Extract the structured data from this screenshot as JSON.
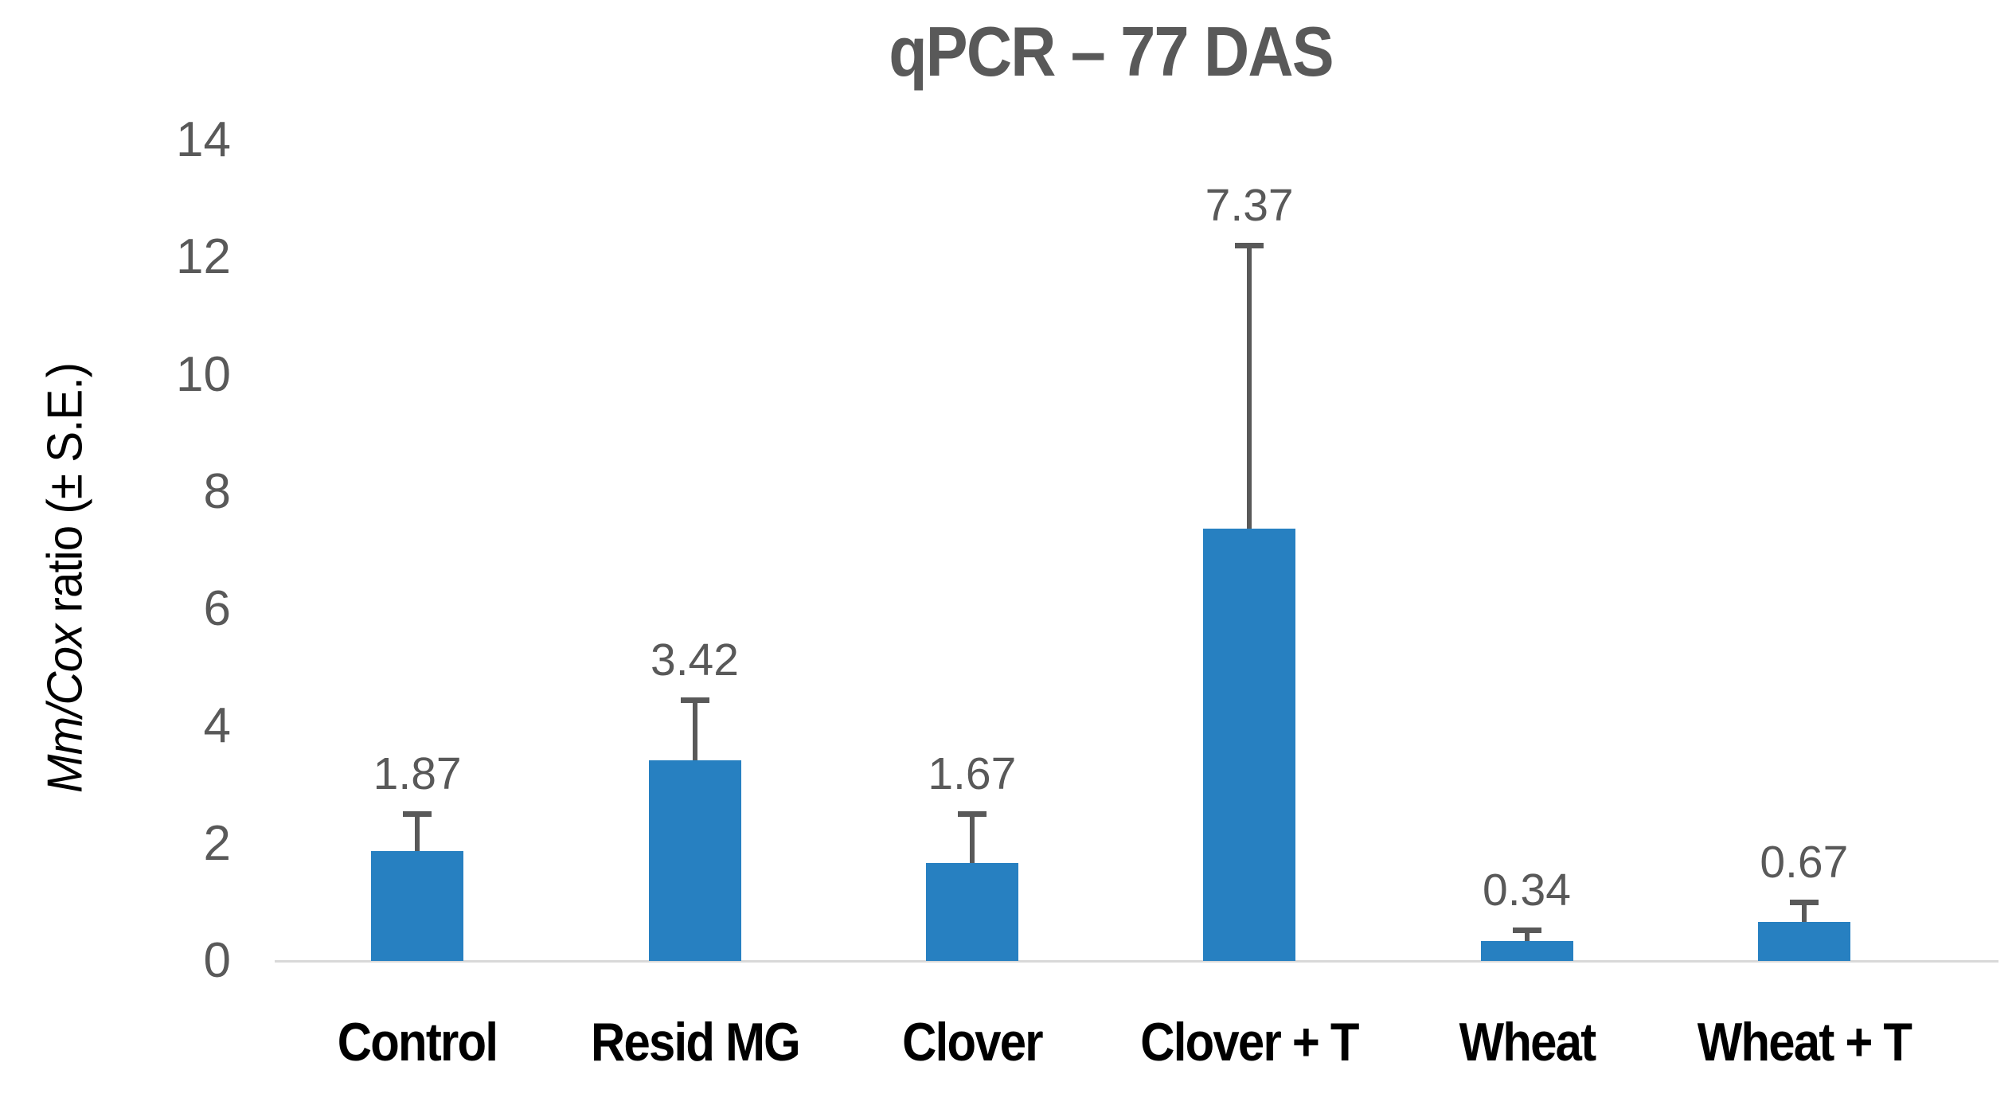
{
  "page": {
    "background": "#ffffff"
  },
  "chart_data": {
    "type": "bar",
    "title": "qPCR – 77 DAS",
    "ylabel": {
      "italic": "Mm/Cox",
      "rest": " ratio (± S.E.)",
      "full": "Mm/Cox ratio (± S.E.)"
    },
    "xlabel": "",
    "categories": [
      "Control",
      "Resid MG",
      "Clover",
      "Clover + T",
      "Wheat",
      "Wheat + T"
    ],
    "values": [
      1.87,
      3.42,
      1.67,
      7.37,
      0.34,
      0.67
    ],
    "data_labels": [
      "1.87",
      "3.42",
      "1.67",
      "7.37",
      "0.34",
      "0.67"
    ],
    "se_upper": [
      0.63,
      1.03,
      0.83,
      4.83,
      0.18,
      0.33
    ],
    "error_bar_tops": [
      2.5,
      4.45,
      2.5,
      12.2,
      0.52,
      1.0
    ],
    "yticks": [
      0,
      2,
      4,
      6,
      8,
      10,
      12,
      14
    ],
    "ylim": [
      0,
      14
    ],
    "grid": false,
    "legend": false,
    "error_bars": "upper S.E. whiskers with end caps",
    "colors": {
      "bar": "#2780C1",
      "error_bar": "#595959",
      "title": "#595959",
      "tick_labels": "#595959",
      "data_labels": "#595959",
      "category_labels": "#000000",
      "y_axis_title": "#000000",
      "axis_line": "#D9D9D9"
    }
  }
}
